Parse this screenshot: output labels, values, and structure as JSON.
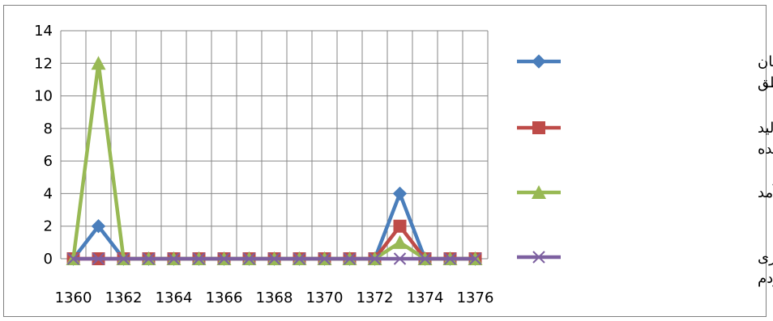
{
  "chart_data": {
    "type": "line",
    "title": "",
    "xlabel": "",
    "ylabel": "",
    "ylim": [
      0,
      14
    ],
    "yticks": [
      "0",
      "2",
      "4",
      "6",
      "8",
      "10",
      "12",
      "14"
    ],
    "grid": true,
    "legend_position": "right",
    "categories": [
      "1360",
      "1361",
      "1362",
      "1363",
      "1364",
      "1365",
      "1366",
      "1367",
      "1368",
      "1369",
      "1370",
      "1371",
      "1372",
      "1373",
      "1374",
      "1375",
      "1376"
    ],
    "xtick_labels": [
      "1360",
      "1362",
      "1364",
      "1366",
      "1368",
      "1370",
      "1372",
      "1374",
      "1376"
    ],
    "series": [
      {
        "name": "توزیع عادلانه خدمات میان مناطق",
        "name_lines": [
          "توزیع عادلانه خدمات میان",
          "مناطق"
        ],
        "color": "#4a7ebb",
        "marker": "diamond",
        "values": [
          0,
          2,
          0,
          0,
          0,
          0,
          0,
          0,
          0,
          0,
          0,
          0,
          0,
          4,
          0,
          0,
          0
        ]
      },
      {
        "name": "توزیع عادلانه کالاهای تولید شده",
        "name_lines": [
          "توزیع عادلانه کالاهای تولید",
          "شده"
        ],
        "color": "#be4b48",
        "marker": "square",
        "values": [
          0,
          0,
          0,
          0,
          0,
          0,
          0,
          0,
          0,
          0,
          0,
          0,
          0,
          2,
          0,
          0,
          0
        ]
      },
      {
        "name": "توزیع عادلانه درآمد",
        "name_lines": [
          "توزیع عادلانه درآمد"
        ],
        "color": "#98b954",
        "marker": "triangle",
        "values": [
          0,
          12,
          0,
          0,
          0,
          0,
          0,
          0,
          0,
          0,
          0,
          0,
          0,
          1,
          0,
          0,
          0
        ]
      },
      {
        "name": "توزیع ثروت قابل واگذاری بین مردم",
        "name_lines": [
          "توزیع ثروت قابل واگذاری",
          "بین مردم"
        ],
        "color": "#7d60a0",
        "marker": "x",
        "values": [
          0,
          0,
          0,
          0,
          0,
          0,
          0,
          0,
          0,
          0,
          0,
          0,
          0,
          0,
          0,
          0,
          0
        ]
      }
    ]
  }
}
